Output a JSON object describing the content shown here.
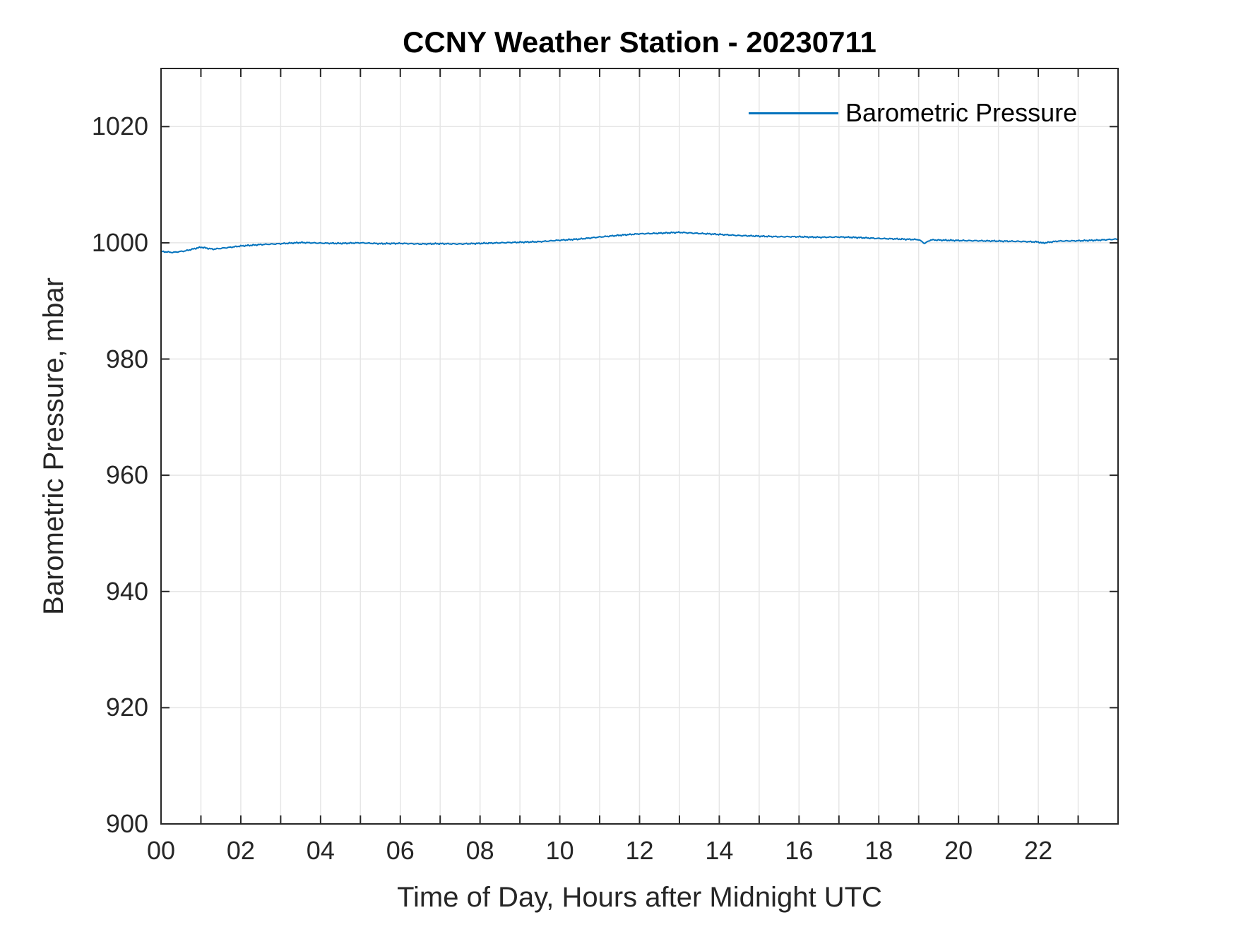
{
  "figure": {
    "background": "#ffffff"
  },
  "chart_data": {
    "type": "line",
    "title": "CCNY Weather Station - 20230711",
    "xlabel": "Time of Day, Hours after Midnight UTC",
    "ylabel": "Barometric Pressure, mbar",
    "xlim": [
      0,
      24
    ],
    "ylim": [
      900,
      1030
    ],
    "xticks_labeled": [
      0,
      2,
      4,
      6,
      8,
      10,
      12,
      14,
      16,
      18,
      20,
      22
    ],
    "xtick_labels": [
      "00",
      "02",
      "04",
      "06",
      "08",
      "10",
      "12",
      "14",
      "16",
      "18",
      "20",
      "22"
    ],
    "xticks_minor_every": 1,
    "yticks": [
      900,
      920,
      940,
      960,
      980,
      1000,
      1020
    ],
    "ytick_labels": [
      "900",
      "920",
      "940",
      "960",
      "980",
      "1000",
      "1020"
    ],
    "grid": true,
    "x_grid_every_hours": 1,
    "legend_position": "top-right-inside",
    "legend_box": false,
    "colors": {
      "line": "#0072BD",
      "grid": "#e6e6e6",
      "axis": "#262626",
      "text": "#262626"
    },
    "series": [
      {
        "name": "Barometric Pressure",
        "color": "#0072BD",
        "units": "mbar",
        "x": [
          0.0,
          0.3,
          0.6,
          1.0,
          1.3,
          1.7,
          2.0,
          2.5,
          3.0,
          3.5,
          4.0,
          4.5,
          5.0,
          5.5,
          6.0,
          6.5,
          7.0,
          7.5,
          8.0,
          8.5,
          9.0,
          9.5,
          10.0,
          10.5,
          11.0,
          11.5,
          12.0,
          12.5,
          13.0,
          13.4,
          14.0,
          14.5,
          15.0,
          15.5,
          16.0,
          16.5,
          17.0,
          17.5,
          18.0,
          18.5,
          19.0,
          19.15,
          19.3,
          20.0,
          20.5,
          21.0,
          21.5,
          22.0,
          22.1,
          22.5,
          23.0,
          23.5,
          24.0
        ],
        "y": [
          998.5,
          998.35,
          998.6,
          999.25,
          998.9,
          999.2,
          999.45,
          999.7,
          999.85,
          1000.05,
          999.95,
          999.9,
          1000.0,
          999.85,
          999.9,
          999.8,
          999.85,
          999.8,
          999.9,
          1000.0,
          1000.1,
          1000.2,
          1000.45,
          1000.65,
          1001.0,
          1001.3,
          1001.55,
          1001.65,
          1001.8,
          1001.65,
          1001.45,
          1001.25,
          1001.15,
          1001.05,
          1001.05,
          1000.95,
          1001.0,
          1000.9,
          1000.75,
          1000.65,
          1000.55,
          999.9,
          1000.5,
          1000.4,
          1000.35,
          1000.3,
          1000.25,
          1000.15,
          999.95,
          1000.3,
          1000.35,
          1000.45,
          1000.65
        ]
      }
    ]
  }
}
